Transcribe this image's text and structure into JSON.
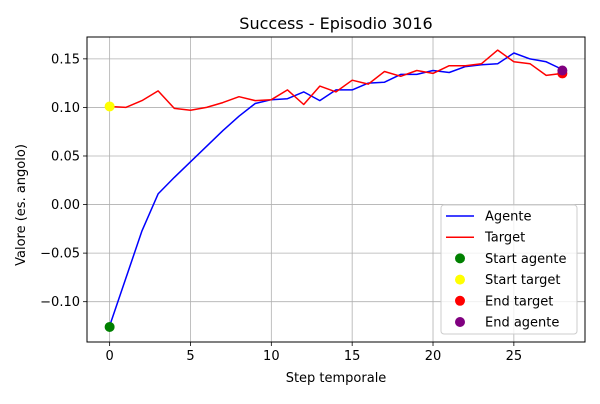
{
  "chart_data": {
    "type": "line",
    "title": "Success - Episodio 3016",
    "xlabel": "Step temporale",
    "ylabel": "Valore (es. angolo)",
    "xlim": [
      -1.4,
      29.4
    ],
    "ylim": [
      -0.1415,
      0.1725
    ],
    "xticks": [
      0,
      5,
      10,
      15,
      20,
      25
    ],
    "xtick_labels": [
      "0",
      "5",
      "10",
      "15",
      "20",
      "25"
    ],
    "yticks": [
      -0.1,
      -0.05,
      0.0,
      0.05,
      0.1,
      0.15
    ],
    "ytick_labels": [
      "−0.10",
      "−0.05",
      "0.00",
      "0.05",
      "0.10",
      "0.15"
    ],
    "grid": true,
    "legend_position": "bottom-right",
    "series": [
      {
        "name": "Agente",
        "kind": "line",
        "color": "#0000ff",
        "x": [
          0,
          1,
          2,
          3,
          4,
          5,
          6,
          7,
          8,
          9,
          10,
          11,
          12,
          13,
          14,
          15,
          16,
          17,
          18,
          19,
          20,
          21,
          22,
          23,
          24,
          25,
          26,
          27,
          28
        ],
        "y": [
          -0.125,
          -0.076,
          -0.027,
          0.011,
          0.028,
          0.044,
          0.06,
          0.076,
          0.091,
          0.104,
          0.108,
          0.109,
          0.116,
          0.107,
          0.118,
          0.118,
          0.125,
          0.126,
          0.134,
          0.134,
          0.138,
          0.136,
          0.142,
          0.144,
          0.145,
          0.156,
          0.15,
          0.147,
          0.139
        ]
      },
      {
        "name": "Target",
        "kind": "line",
        "color": "#ff0000",
        "x": [
          0,
          1,
          2,
          3,
          4,
          5,
          6,
          7,
          8,
          9,
          10,
          11,
          12,
          13,
          14,
          15,
          16,
          17,
          18,
          19,
          20,
          21,
          22,
          23,
          24,
          25,
          26,
          27,
          28
        ],
        "y": [
          0.101,
          0.1,
          0.107,
          0.117,
          0.099,
          0.097,
          0.1,
          0.105,
          0.111,
          0.107,
          0.108,
          0.118,
          0.103,
          0.122,
          0.116,
          0.128,
          0.124,
          0.137,
          0.132,
          0.138,
          0.135,
          0.143,
          0.143,
          0.145,
          0.159,
          0.147,
          0.145,
          0.133,
          0.135
        ]
      },
      {
        "name": "Start agente",
        "kind": "point",
        "color": "#008000",
        "x": [
          0
        ],
        "y": [
          -0.126
        ]
      },
      {
        "name": "Start target",
        "kind": "point",
        "color": "#ffff00",
        "x": [
          0
        ],
        "y": [
          0.101
        ]
      },
      {
        "name": "End target",
        "kind": "point",
        "color": "#ff0000",
        "x": [
          28
        ],
        "y": [
          0.135
        ]
      },
      {
        "name": "End agente",
        "kind": "point",
        "color": "#800080",
        "x": [
          28
        ],
        "y": [
          0.138
        ]
      }
    ]
  }
}
